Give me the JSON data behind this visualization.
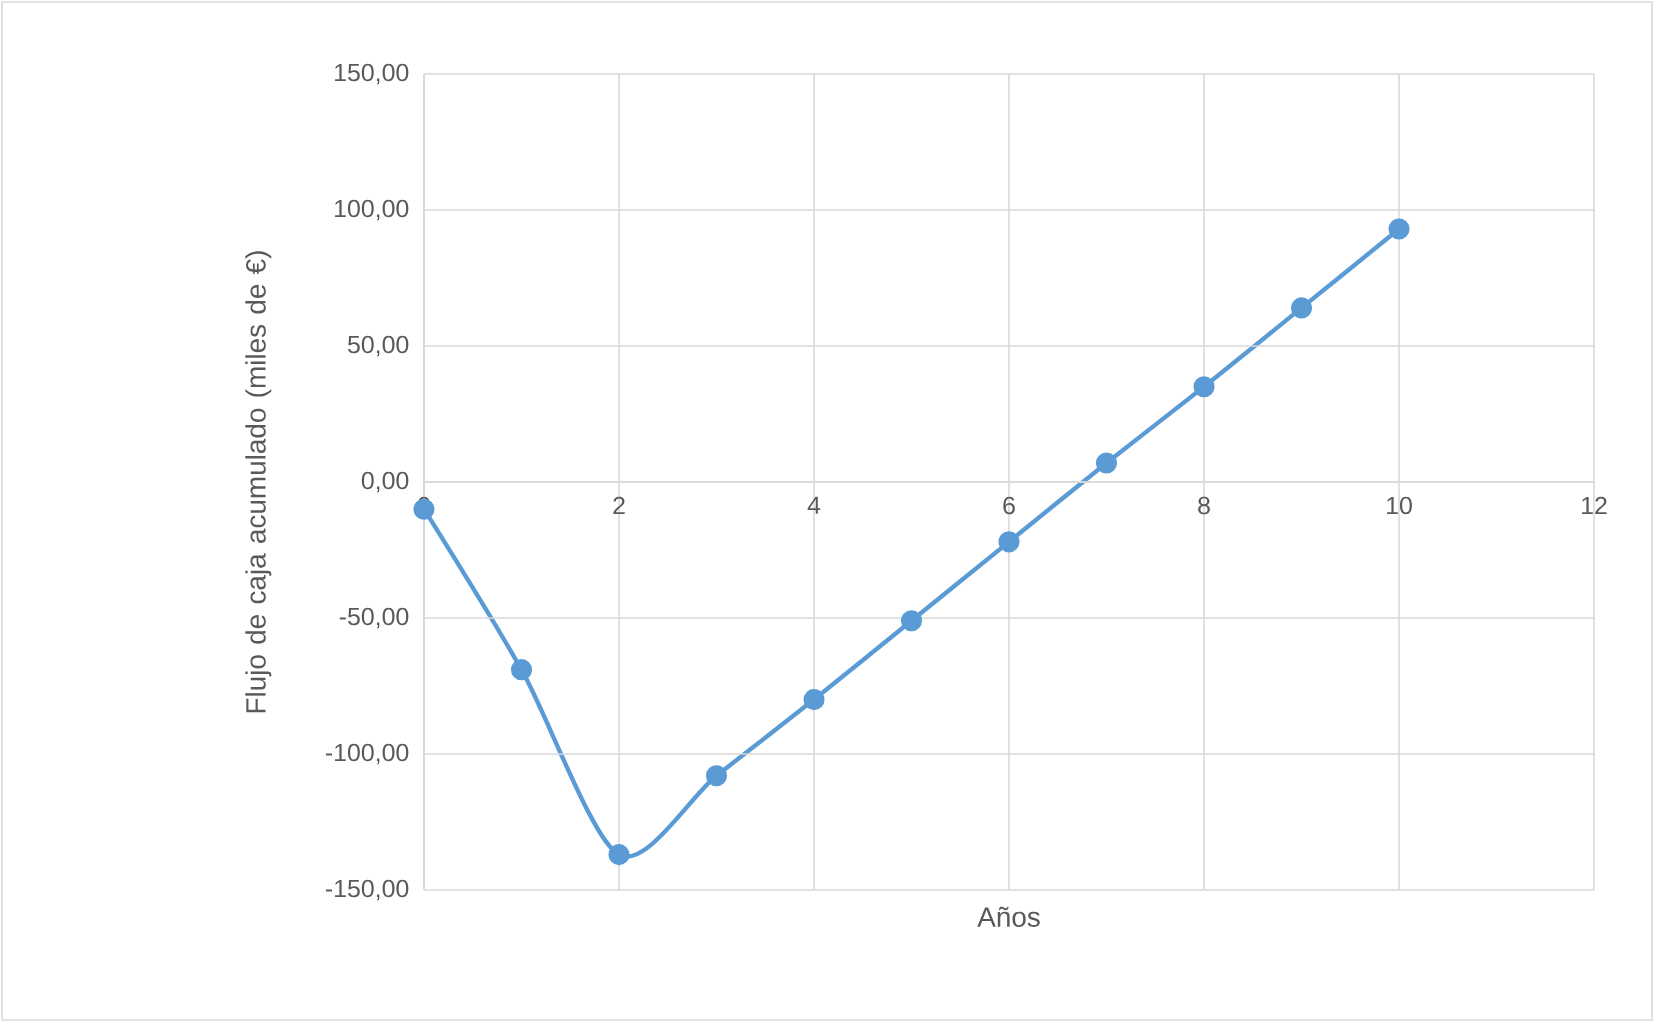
{
  "chart_data": {
    "type": "line",
    "xlabel": "Años",
    "ylabel": "Flujo de caja acumulado (miles de €)",
    "x": [
      0,
      1,
      2,
      3,
      4,
      5,
      6,
      7,
      8,
      9,
      10
    ],
    "series": [
      {
        "color": "#5b9bd5",
        "values": [
          -10,
          -69,
          -137,
          -108,
          -80,
          -51,
          -22,
          7,
          35,
          64,
          93
        ]
      }
    ],
    "xlim": [
      0,
      12
    ],
    "xticks": [
      0,
      2,
      4,
      6,
      8,
      10,
      12
    ],
    "ylim": [
      -150,
      150
    ],
    "yticks": [
      {
        "value": -150,
        "label": "-150,00"
      },
      {
        "value": -100,
        "label": "-100,00"
      },
      {
        "value": -50,
        "label": "-50,00"
      },
      {
        "value": 0,
        "label": "0,00"
      },
      {
        "value": 50,
        "label": "50,00"
      },
      {
        "value": 100,
        "label": "100,00"
      },
      {
        "value": 150,
        "label": "150,00"
      }
    ],
    "grid": true,
    "marker": "circle",
    "line_style": "solid"
  }
}
